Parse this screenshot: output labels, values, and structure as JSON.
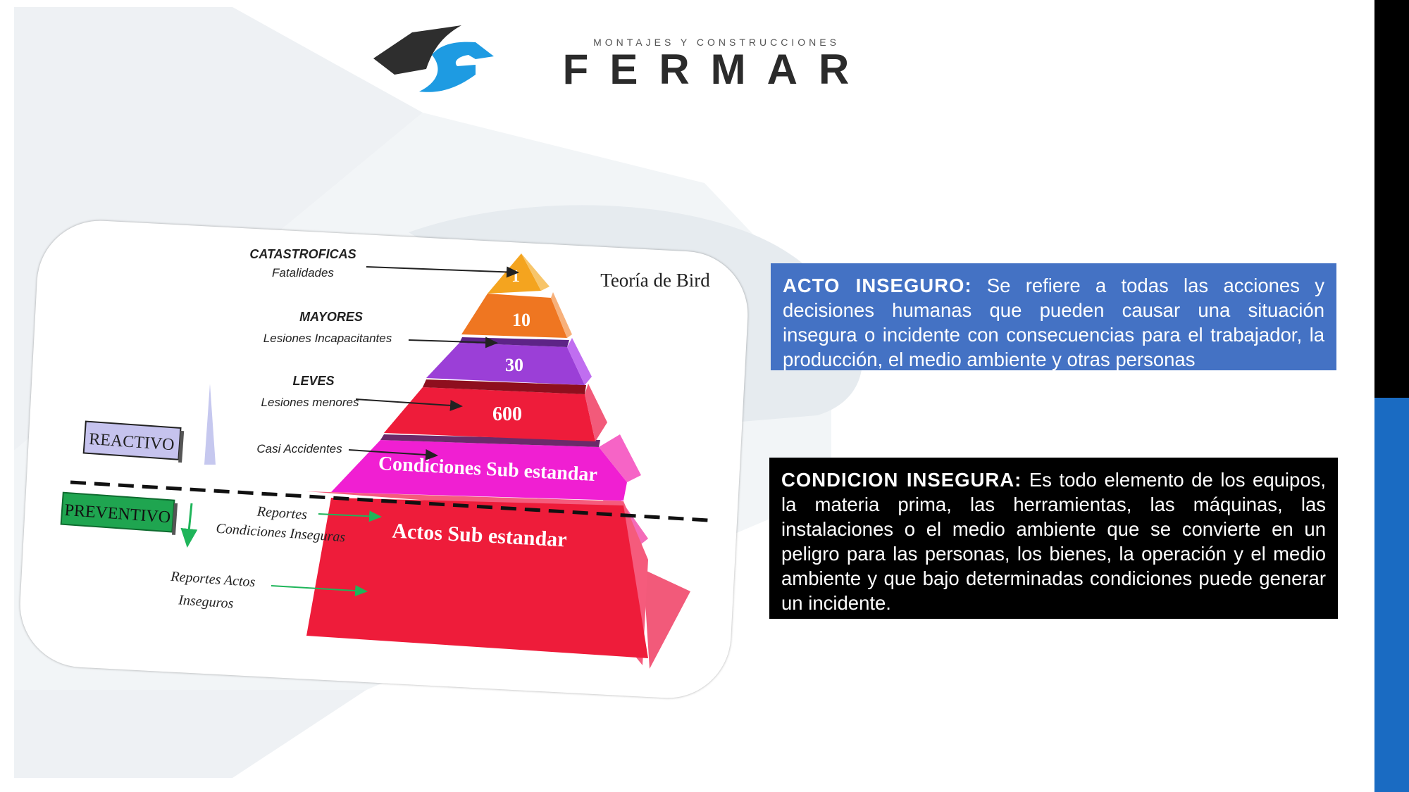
{
  "logo": {
    "subtitle": "MONTAJES Y CONSTRUCCIONES",
    "name": "FERMAR"
  },
  "pyramid": {
    "title": "Teoría de Bird",
    "levels": [
      {
        "value": "1",
        "color": "#f4a41f"
      },
      {
        "value": "10",
        "color": "#ef7621"
      },
      {
        "value": "30",
        "color": "#9b3fd7"
      },
      {
        "value": "600",
        "color": "#ee1c3a"
      },
      {
        "value": "Condiciones  Sub estandar",
        "color": "#f01fd2"
      },
      {
        "value": "Actos Sub estandar",
        "color": "#ee1c3a"
      }
    ],
    "labels": {
      "catastroficas_title": "CATASTROFICAS",
      "catastroficas_sub": "Fatalidades",
      "mayores_title": "MAYORES",
      "mayores_sub": "Lesiones Incapacitantes",
      "leves_title": "LEVES",
      "leves_sub": "Lesiones menores",
      "casi": "Casi Accidentes",
      "reportes_cond_1": "Reportes",
      "reportes_cond_2": "Condiciones  Inseguras",
      "reportes_actos_1": "Reportes Actos",
      "reportes_actos_2": "Inseguros"
    },
    "reactivo": "REACTIVO",
    "preventivo": "PREVENTIVO"
  },
  "acto": {
    "title": "ACTO INSEGURO:",
    "text": " Se refiere a todas las acciones y decisiones humanas que pueden causar una situación insegura o incidente con consecuencias para el trabajador, la producción, el medio ambiente y otras personas"
  },
  "condicion": {
    "title": "CONDICION INSEGURA:",
    "text": " Es todo elemento de los equipos, la materia prima, las herramientas, las máquinas, las instalaciones o el medio ambiente que se convierte en un peligro para las personas, los bienes, la operación y el medio ambiente y que bajo determinadas condiciones puede generar un incidente."
  },
  "colors": {
    "accent_blue": "#4472c4",
    "bar_blue": "#1a6bc2",
    "logo_blue": "#1e9be2"
  }
}
